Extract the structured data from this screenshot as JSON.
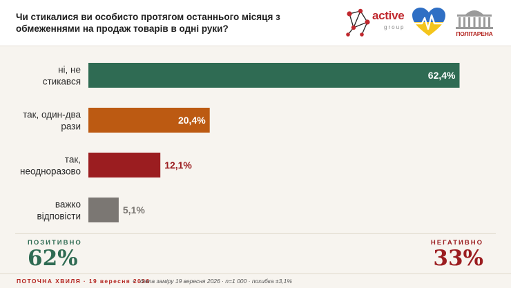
{
  "header": {
    "question": "Чи стикалися ви особисто протягом останнього місяця з обмеженнями на продаж товарів в одні руки?",
    "logo_active": "active",
    "logo_group": "group",
    "logo_politarena": "ПОЛІТАРЕНА"
  },
  "chart_data": {
    "type": "bar",
    "orientation": "horizontal",
    "categories": [
      "ні, не стикався",
      "так, один-два рази",
      "так, неодноразово",
      "важко відповісти"
    ],
    "values": [
      62.4,
      20.4,
      12.1,
      5.1
    ],
    "value_labels": [
      "62,4%",
      "20,4%",
      "12,1%",
      "5,1%"
    ],
    "colors": [
      "#2f6b53",
      "#bc5a12",
      "#9b1d20",
      "#7b7773"
    ],
    "label_colors": [
      "#ffffff",
      "#ffffff",
      "#9b1d20",
      "#7b7773"
    ],
    "label_inside": [
      true,
      true,
      false,
      false
    ],
    "xlim": [
      0,
      70
    ],
    "grid": false
  },
  "summary": {
    "positive_label": "ПОЗИТИВНО",
    "positive_value": "62%",
    "positive_color": "#2f6b53",
    "negative_label": "НЕГАТИВНО",
    "negative_value": "33%",
    "negative_color": "#9b1d20"
  },
  "footer": {
    "wave": "ПОТОЧНА ХВИЛЯ · 19 вересня 2026",
    "separator": "•",
    "meta": "дата заміру 19 вересня 2026 · n=1 000 · похибка ±3,1%"
  }
}
